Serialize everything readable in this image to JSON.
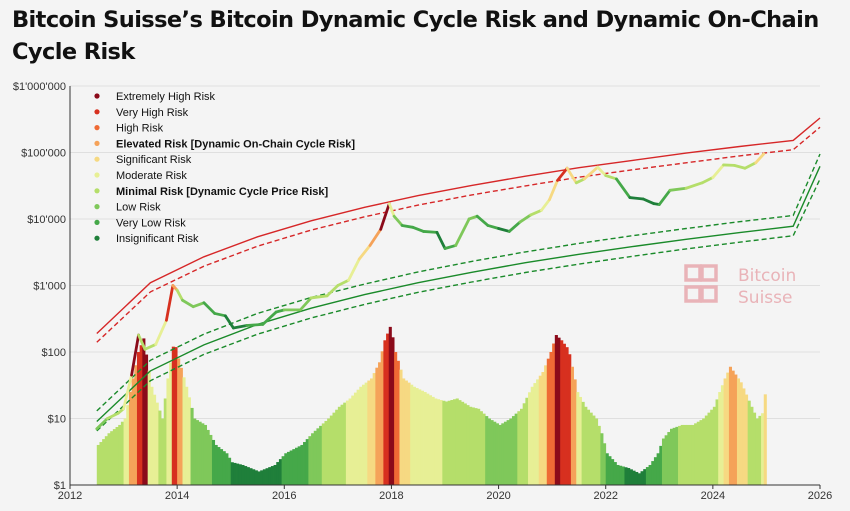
{
  "title": "Bitcoin Suisse’s Bitcoin Dynamic Cycle Risk and Dynamic On-Chain Cycle Risk",
  "logo": {
    "line1": "Bitcoin",
    "line2": "Suisse",
    "color": "#e9b3b8"
  },
  "colors": {
    "risk": [
      "#8b0a1a",
      "#d7301f",
      "#ef6a35",
      "#f5a259",
      "#f6d982",
      "#e7ef95",
      "#b5de6a",
      "#7fc85a",
      "#45a849",
      "#1f7f3a"
    ],
    "upper_band": "#d62728",
    "lower_band": "#1a8a2a"
  },
  "chart_data": {
    "type": "line",
    "xlabel": "",
    "ylabel": "",
    "y_scale": "log",
    "xlim": [
      2012,
      2026
    ],
    "ylim": [
      1,
      1000000
    ],
    "x_ticks": [
      "2012",
      "2014",
      "2016",
      "2018",
      "2020",
      "2022",
      "2024",
      "2026"
    ],
    "y_ticks": [
      "$1'000'000",
      "$100'000",
      "$10'000",
      "$1'000",
      "$100",
      "$10",
      "$1"
    ],
    "grid": true,
    "legend": {
      "placement": "top-left",
      "entries": [
        {
          "label": "Extremely High Risk",
          "color": "#8b0a1a",
          "bold": false
        },
        {
          "label": "Very High Risk",
          "color": "#d7301f",
          "bold": false
        },
        {
          "label": "High Risk",
          "color": "#ef6a35",
          "bold": false
        },
        {
          "label": "Elevated Risk [Dynamic On-Chain Cycle Risk]",
          "color": "#f5a259",
          "bold": true
        },
        {
          "label": "Significant Risk",
          "color": "#f6d982",
          "bold": false
        },
        {
          "label": "Moderate Risk",
          "color": "#e7ef95",
          "bold": false
        },
        {
          "label": "Minimal Risk [Dynamic Cycle Price Risk]",
          "color": "#b5de6a",
          "bold": true
        },
        {
          "label": "Low Risk",
          "color": "#7fc85a",
          "bold": false
        },
        {
          "label": "Very Low Risk",
          "color": "#45a849",
          "bold": false
        },
        {
          "label": "Insignificant Risk",
          "color": "#1f7f3a",
          "bold": false
        }
      ]
    },
    "price_series": {
      "x": [
        2012.5,
        2012.7,
        2012.9,
        2013.0,
        2013.15,
        2013.28,
        2013.4,
        2013.6,
        2013.8,
        2013.92,
        2014.0,
        2014.1,
        2014.3,
        2014.5,
        2014.7,
        2014.9,
        2015.05,
        2015.3,
        2015.6,
        2015.85,
        2016.0,
        2016.3,
        2016.5,
        2016.8,
        2017.0,
        2017.2,
        2017.4,
        2017.6,
        2017.8,
        2017.96,
        2018.05,
        2018.2,
        2018.4,
        2018.6,
        2018.85,
        2019.0,
        2019.2,
        2019.45,
        2019.6,
        2019.8,
        2020.0,
        2020.2,
        2020.4,
        2020.6,
        2020.8,
        2020.95,
        2021.1,
        2021.28,
        2021.45,
        2021.6,
        2021.85,
        2022.0,
        2022.2,
        2022.45,
        2022.7,
        2022.9,
        2023.0,
        2023.2,
        2023.5,
        2023.8,
        2024.0,
        2024.2,
        2024.4,
        2024.6,
        2024.8,
        2024.95
      ],
      "y": [
        7,
        10,
        12,
        14,
        45,
        180,
        110,
        130,
        300,
        1000,
        850,
        600,
        480,
        550,
        380,
        350,
        230,
        250,
        260,
        400,
        430,
        430,
        650,
        700,
        1000,
        1200,
        2500,
        4000,
        7000,
        17000,
        11000,
        8000,
        7500,
        6500,
        6300,
        3600,
        4000,
        10000,
        11000,
        8000,
        7200,
        6500,
        9000,
        11500,
        13500,
        19500,
        38000,
        58000,
        35000,
        40000,
        60000,
        45000,
        40000,
        21000,
        20000,
        17000,
        16500,
        27000,
        29000,
        35000,
        42000,
        65000,
        64000,
        58000,
        70000,
        95000
      ],
      "risk": [
        7,
        7,
        6,
        6,
        5,
        0,
        6,
        6,
        5,
        1,
        3,
        6,
        7,
        7,
        8,
        8,
        9,
        9,
        8,
        8,
        8,
        7,
        7,
        6,
        6,
        6,
        5,
        4,
        3,
        0,
        5,
        7,
        8,
        8,
        8,
        9,
        8,
        7,
        7,
        8,
        8,
        9,
        8,
        7,
        6,
        5,
        4,
        1,
        4,
        6,
        4,
        5,
        6,
        8,
        9,
        9,
        9,
        8,
        7,
        6,
        6,
        5,
        6,
        6,
        6,
        4
      ]
    },
    "onchain_risk": {
      "x": [
        2012.5,
        2012.7,
        2012.9,
        2013.0,
        2013.15,
        2013.25,
        2013.35,
        2013.5,
        2013.7,
        2013.8,
        2013.92,
        2014.0,
        2014.15,
        2014.3,
        2014.5,
        2014.7,
        2014.9,
        2015.0,
        2015.2,
        2015.5,
        2015.8,
        2016.0,
        2016.3,
        2016.5,
        2016.8,
        2017.0,
        2017.2,
        2017.4,
        2017.6,
        2017.75,
        2017.85,
        2017.96,
        2018.05,
        2018.2,
        2018.4,
        2018.6,
        2018.8,
        2019.0,
        2019.2,
        2019.45,
        2019.6,
        2019.8,
        2020.0,
        2020.2,
        2020.4,
        2020.6,
        2020.8,
        2020.95,
        2021.05,
        2021.15,
        2021.28,
        2021.35,
        2021.45,
        2021.6,
        2021.8,
        2021.9,
        2022.0,
        2022.2,
        2022.4,
        2022.6,
        2022.8,
        2022.95,
        2023.05,
        2023.2,
        2023.4,
        2023.6,
        2023.8,
        2024.0,
        2024.1,
        2024.2,
        2024.3,
        2024.5,
        2024.7,
        2024.8,
        2024.9,
        2024.97
      ],
      "y": [
        4,
        6,
        8,
        10,
        40,
        100,
        160,
        30,
        10,
        40,
        150,
        80,
        30,
        10,
        8,
        4,
        3,
        2.2,
        2,
        1.6,
        2,
        3,
        4,
        6,
        10,
        15,
        20,
        30,
        40,
        70,
        150,
        250,
        100,
        40,
        30,
        25,
        20,
        18,
        20,
        15,
        14,
        10,
        8,
        10,
        14,
        30,
        50,
        100,
        180,
        150,
        110,
        60,
        25,
        15,
        10,
        6,
        3,
        2,
        1.8,
        1.5,
        2,
        3,
        5,
        7,
        8,
        8,
        10,
        15,
        25,
        40,
        60,
        35,
        15,
        10,
        12,
        30
      ],
      "risk": [
        6,
        6,
        6,
        5,
        3,
        1,
        0,
        5,
        6,
        5,
        1,
        3,
        5,
        7,
        7,
        8,
        8,
        9,
        9,
        9,
        9,
        8,
        8,
        7,
        6,
        6,
        5,
        5,
        4,
        3,
        1,
        0,
        2,
        4,
        5,
        5,
        5,
        6,
        6,
        6,
        6,
        7,
        7,
        7,
        6,
        5,
        4,
        2,
        0,
        1,
        1,
        3,
        5,
        6,
        6,
        7,
        8,
        8,
        9,
        9,
        8,
        8,
        7,
        7,
        6,
        6,
        6,
        6,
        5,
        4,
        3,
        4,
        6,
        6,
        5,
        4
      ]
    },
    "band_series": [
      {
        "style": "solid",
        "color": "#d62728",
        "x": [
          2012.5,
          2013.5,
          2014.5,
          2015.5,
          2016.5,
          2017.5,
          2018.5,
          2019.5,
          2020.5,
          2021.5,
          2022.5,
          2023.5,
          2024.5,
          2025.5,
          2026.0
        ],
        "y": [
          190,
          1100,
          2700,
          5400,
          9400,
          15000,
          22500,
          32000,
          44000,
          59000,
          76000,
          98000,
          123000,
          152000,
          330000
        ]
      },
      {
        "style": "dashed",
        "color": "#d62728",
        "x": [
          2012.5,
          2013.5,
          2014.5,
          2015.5,
          2016.5,
          2017.5,
          2018.5,
          2019.5,
          2020.5,
          2021.5,
          2022.5,
          2023.5,
          2024.5,
          2025.5,
          2026.0
        ],
        "y": [
          140,
          800,
          1950,
          3900,
          6800,
          10800,
          16200,
          23000,
          31500,
          42500,
          55000,
          70000,
          89000,
          110000,
          240000
        ]
      },
      {
        "style": "dashed",
        "color": "#1a8a2a",
        "x": [
          2012.5,
          2013.5,
          2014.5,
          2015.5,
          2016.5,
          2017.5,
          2018.5,
          2019.5,
          2020.5,
          2021.5,
          2022.5,
          2023.5,
          2024.5,
          2025.5,
          2026.0
        ],
        "y": [
          13,
          75,
          185,
          380,
          660,
          1050,
          1600,
          2300,
          3200,
          4300,
          5600,
          7200,
          9100,
          11300,
          95000
        ]
      },
      {
        "style": "solid",
        "color": "#1a8a2a",
        "x": [
          2012.5,
          2013.5,
          2014.5,
          2015.5,
          2016.5,
          2017.5,
          2018.5,
          2019.5,
          2020.5,
          2021.5,
          2022.5,
          2023.5,
          2024.5,
          2025.5,
          2026.0
        ],
        "y": [
          9,
          52,
          128,
          260,
          455,
          730,
          1100,
          1580,
          2200,
          2950,
          3850,
          4950,
          6250,
          7800,
          62000
        ]
      },
      {
        "style": "dashed",
        "color": "#1a8a2a",
        "x": [
          2012.5,
          2013.5,
          2014.5,
          2015.5,
          2016.5,
          2017.5,
          2018.5,
          2019.5,
          2020.5,
          2021.5,
          2022.5,
          2023.5,
          2024.5,
          2025.5,
          2026.0
        ],
        "y": [
          6.5,
          37,
          92,
          185,
          325,
          520,
          790,
          1130,
          1570,
          2100,
          2750,
          3550,
          4480,
          5600,
          40000
        ]
      }
    ]
  }
}
